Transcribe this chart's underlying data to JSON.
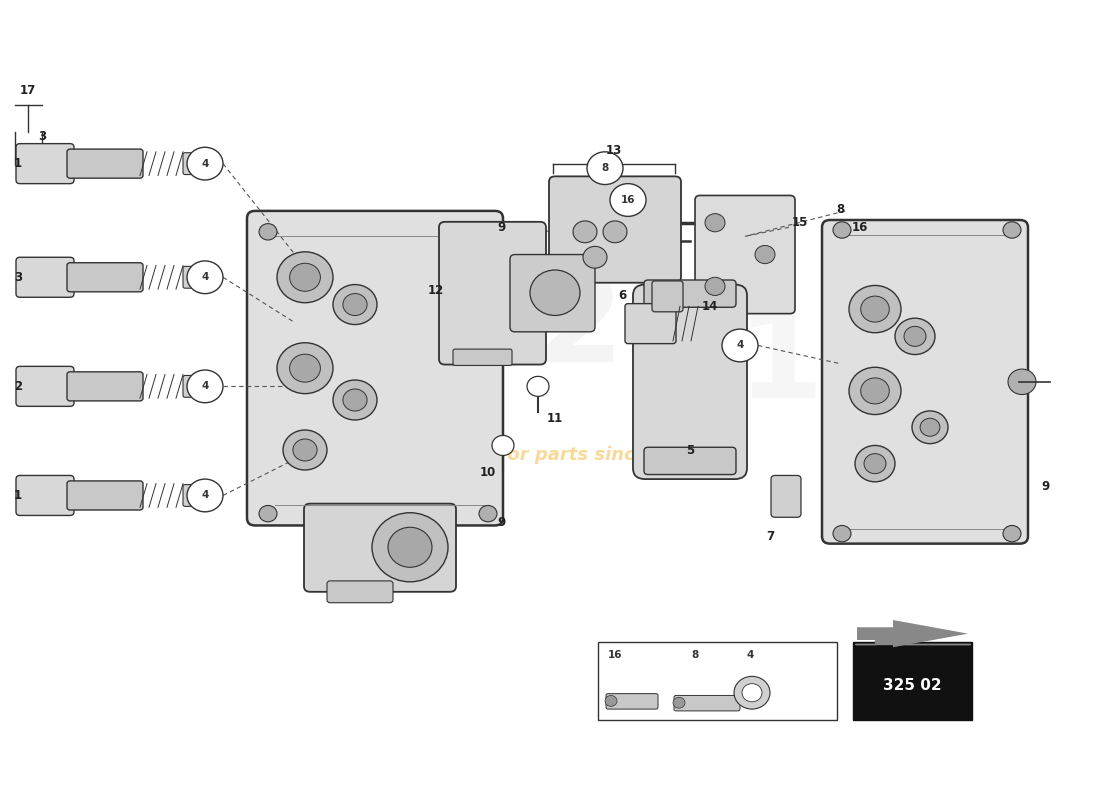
{
  "bg_color": "#ffffff",
  "fig_width": 11.0,
  "fig_height": 8.0,
  "dpi": 100,
  "watermark_color": "#f0a000",
  "part_number": "325 02"
}
